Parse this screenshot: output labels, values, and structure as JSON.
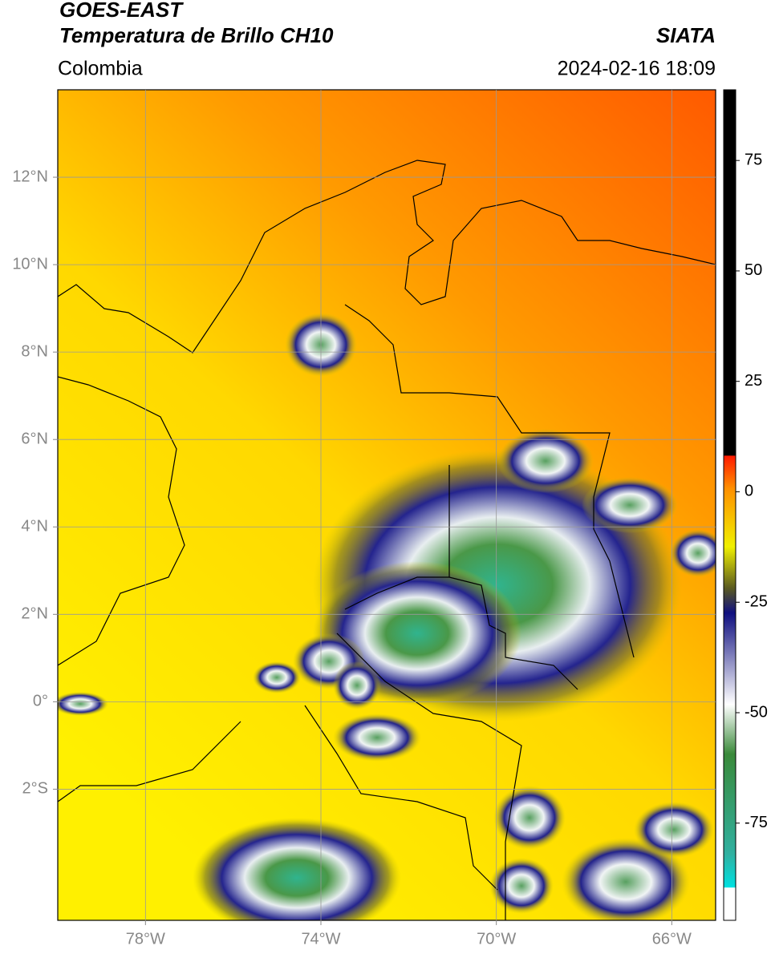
{
  "header": {
    "line1": "GOES-EAST",
    "line2": "Temperatura de Brillo CH10",
    "org": "SIATA",
    "region": "Colombia",
    "datetime": "2024-02-16 18:09"
  },
  "map": {
    "xlim": [
      -80,
      -65
    ],
    "ylim": [
      -5,
      14
    ],
    "xticks": [
      {
        "value": -78,
        "label": "78°W"
      },
      {
        "value": -74,
        "label": "74°W"
      },
      {
        "value": -70,
        "label": "70°W"
      },
      {
        "value": -66,
        "label": "66°W"
      }
    ],
    "yticks": [
      {
        "value": 12,
        "label": "12°N"
      },
      {
        "value": 10,
        "label": "10°N"
      },
      {
        "value": 8,
        "label": "8°N"
      },
      {
        "value": 6,
        "label": "6°N"
      },
      {
        "value": 4,
        "label": "4°N"
      },
      {
        "value": 2,
        "label": "2°N"
      },
      {
        "value": 0,
        "label": "0°"
      },
      {
        "value": -2,
        "label": "2°S"
      }
    ],
    "grid": true
  },
  "colorbar": {
    "lim": [
      -97,
      91
    ],
    "ticks": [
      75,
      50,
      25,
      0,
      -25,
      -50,
      -75
    ]
  }
}
